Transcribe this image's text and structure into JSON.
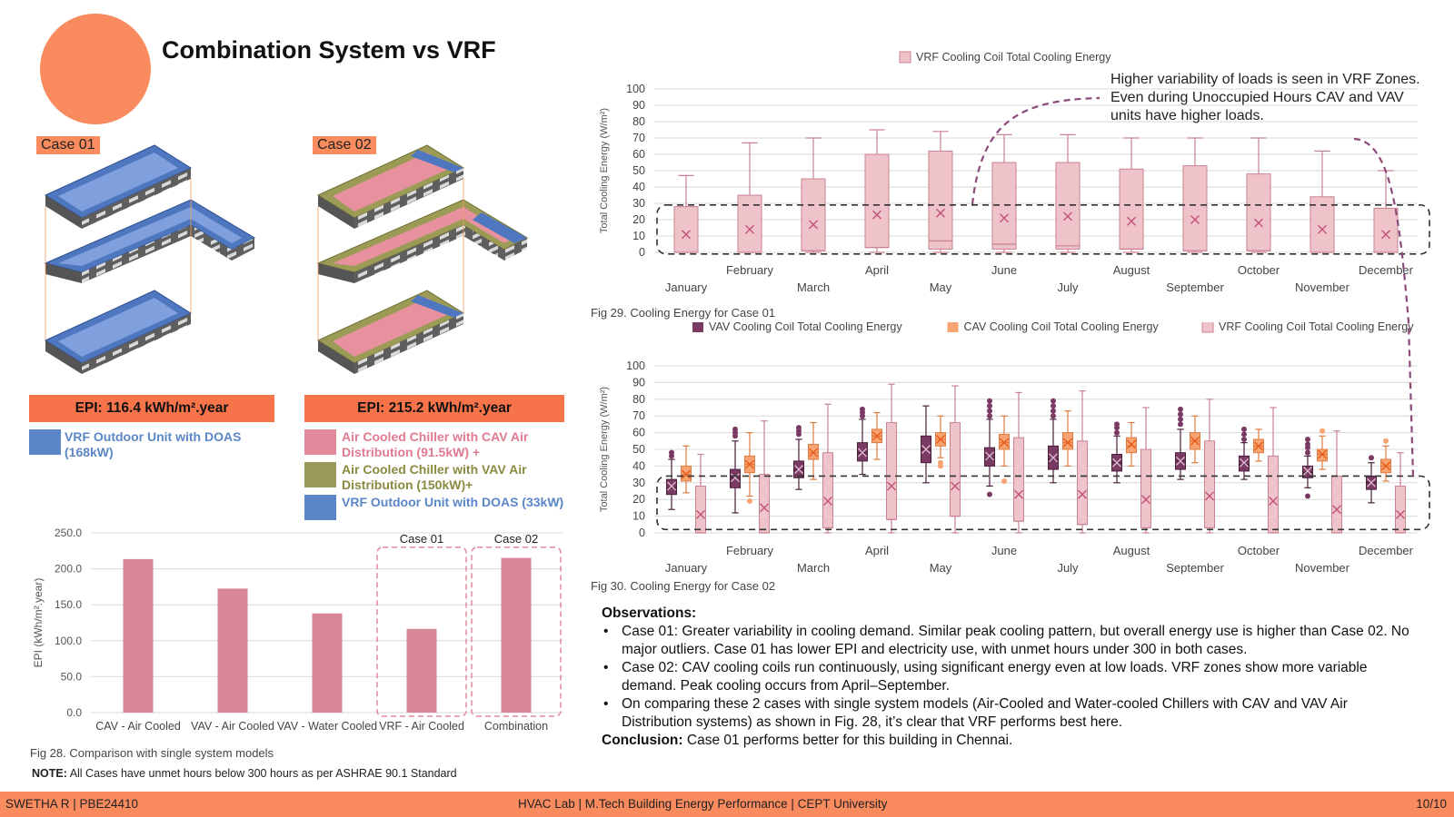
{
  "page": {
    "title": "Combination System vs VRF",
    "case01_label": "Case 01",
    "case02_label": "Case 02",
    "case01_epi": "EPI: 116.4 kWh/m².year",
    "case02_epi": "EPI: 215.2 kWh/m².year",
    "case01_legend": [
      {
        "text": "VRF Outdoor Unit with DOAS (168kW)",
        "color": "#5b86c8",
        "text_color": "#5b86c8"
      }
    ],
    "case02_legend": [
      {
        "text": "Air Cooled Chiller with CAV Air Distribution (91.5kW) +",
        "color": "#e08a9c",
        "text_color": "#e07a8f"
      },
      {
        "text": "Air Cooled Chiller with VAV Air Distribution (150kW)+",
        "color": "#9a9a5a",
        "text_color": "#8a8a40"
      },
      {
        "text": "VRF Outdoor Unit with DOAS (33kW)",
        "color": "#5b86c8",
        "text_color": "#5b86c8"
      }
    ],
    "fig28_caption": "Fig 28. Comparison with single system models",
    "note_label": "NOTE:",
    "note_text": "All Cases have unmet hours below 300 hours as per ASHRAE 90.1 Standard",
    "fig29_caption": "Fig 29. Cooling Energy for Case 01",
    "fig30_caption": "Fig 30. Cooling Energy for Case 02",
    "annotation": "Higher variability of loads is seen in VRF Zones. Even during Unoccupied Hours CAV and VAV units have higher loads.",
    "observations_title": "Observations:",
    "observations": [
      "Case 01: Greater variability in cooling demand. Similar peak cooling pattern, but overall energy use is higher than Case 02. No major outliers. Case 01 has lower EPI and electricity use, with unmet hours under 300 in both cases.",
      "Case 02: CAV cooling coils run continuously, using significant energy even at low loads. VRF zones show more variable demand. Peak cooling occurs from April–September.",
      "On comparing these 2 cases with single system models (Air-Cooled and Water-cooled Chillers with CAV and VAV Air Distribution systems) as shown in Fig. 28, it’s clear that VRF performs best here."
    ],
    "conclusion_label": "Conclusion:",
    "conclusion_text": "Case 01 performs better for this building in Chennai.",
    "footer_left": "SWETHA R | PBE24410",
    "footer_center": "HVAC Lab | M.Tech Building Energy Performance  | CEPT University",
    "footer_right": "10/10",
    "colors": {
      "accent": "#f98b5e",
      "vrf": "#e8b7c1",
      "vav": "#7b3a63",
      "cav": "#f7a472",
      "bar": "#d9879b"
    }
  },
  "chart_data": [
    {
      "id": "fig28",
      "type": "bar",
      "categories": [
        "CAV - Air Cooled",
        "VAV - Air Cooled",
        "VAV - Water Cooled",
        "VRF - Air Cooled",
        "Combination"
      ],
      "values": [
        213.5,
        172.5,
        138,
        116.4,
        215.2
      ],
      "ylabel": "EPI (kWh/m².year)",
      "ylim": [
        0,
        250
      ],
      "yticks": [
        "0.0",
        "50.0",
        "100.0",
        "150.0",
        "200.0",
        "250.0"
      ],
      "highlight_labels": [
        "Case 01",
        "Case 02"
      ],
      "grid": true
    },
    {
      "id": "fig29",
      "type": "box",
      "legend": [
        "VRF Cooling Coil Total Cooling Energy"
      ],
      "ylabel": "Total Cooling Energy  (W/m²)",
      "ylim": [
        0,
        100
      ],
      "yticks": [
        0,
        10,
        20,
        30,
        40,
        50,
        60,
        70,
        80,
        90,
        100
      ],
      "months": [
        "January",
        "February",
        "March",
        "April",
        "May",
        "June",
        "July",
        "August",
        "September",
        "October",
        "November",
        "December"
      ],
      "series": [
        {
          "name": "VRF Cooling Coil Total Cooling Energy",
          "boxes": [
            {
              "min": 0,
              "q1": 0,
              "median": 0,
              "q3": 28,
              "max": 47,
              "mean": 11
            },
            {
              "min": 0,
              "q1": 0,
              "median": 0,
              "q3": 35,
              "max": 67,
              "mean": 14
            },
            {
              "min": 0,
              "q1": 1,
              "median": 1,
              "q3": 45,
              "max": 70,
              "mean": 17
            },
            {
              "min": 0,
              "q1": 3,
              "median": 3,
              "q3": 60,
              "max": 75,
              "mean": 23
            },
            {
              "min": 0,
              "q1": 2,
              "median": 7,
              "q3": 62,
              "max": 74,
              "mean": 24
            },
            {
              "min": 0,
              "q1": 2,
              "median": 5,
              "q3": 55,
              "max": 72,
              "mean": 21
            },
            {
              "min": 0,
              "q1": 2,
              "median": 4,
              "q3": 55,
              "max": 72,
              "mean": 22
            },
            {
              "min": 0,
              "q1": 2,
              "median": 2,
              "q3": 51,
              "max": 70,
              "mean": 19
            },
            {
              "min": 0,
              "q1": 1,
              "median": 1,
              "q3": 53,
              "max": 70,
              "mean": 20
            },
            {
              "min": 0,
              "q1": 1,
              "median": 1,
              "q3": 48,
              "max": 70,
              "mean": 18
            },
            {
              "min": 0,
              "q1": 0,
              "median": 0,
              "q3": 34,
              "max": 62,
              "mean": 14
            },
            {
              "min": 0,
              "q1": 0,
              "median": 0,
              "q3": 27,
              "max": 50,
              "mean": 11
            }
          ]
        }
      ],
      "grid": true
    },
    {
      "id": "fig30",
      "type": "box",
      "legend": [
        "VAV Cooling Coil Total Cooling Energy",
        "CAV Cooling Coil Total Cooling Energy",
        "VRF Cooling Coil Total Cooling Energy"
      ],
      "ylabel": "Total Cooling Energy  (W/m²)",
      "ylim": [
        0,
        100
      ],
      "yticks": [
        0,
        10,
        20,
        30,
        40,
        50,
        60,
        70,
        80,
        90,
        100
      ],
      "months": [
        "January",
        "February",
        "March",
        "April",
        "May",
        "June",
        "July",
        "August",
        "September",
        "October",
        "November",
        "December"
      ],
      "series": [
        {
          "name": "VAV Cooling Coil Total Cooling Energy",
          "boxes": [
            {
              "min": 14,
              "q1": 23,
              "median": 27,
              "q3": 32,
              "max": 44,
              "mean": 28,
              "outliers": [
                46,
                48
              ]
            },
            {
              "min": 12,
              "q1": 27,
              "median": 33,
              "q3": 38,
              "max": 55,
              "mean": 33,
              "outliers": [
                58,
                60,
                62
              ]
            },
            {
              "min": 26,
              "q1": 33,
              "median": 38,
              "q3": 43,
              "max": 56,
              "mean": 38,
              "outliers": [
                59,
                61,
                63
              ]
            },
            {
              "min": 35,
              "q1": 43,
              "median": 48,
              "q3": 54,
              "max": 68,
              "mean": 48,
              "outliers": [
                70,
                72,
                74
              ]
            },
            {
              "min": 30,
              "q1": 42,
              "median": 50,
              "q3": 58,
              "max": 76,
              "mean": 50
            },
            {
              "min": 28,
              "q1": 40,
              "median": 45,
              "q3": 51,
              "max": 68,
              "mean": 46,
              "outliers": [
                23,
                70,
                73,
                76,
                79
              ]
            },
            {
              "min": 30,
              "q1": 38,
              "median": 44,
              "q3": 52,
              "max": 68,
              "mean": 45,
              "outliers": [
                70,
                73,
                76,
                79
              ]
            },
            {
              "min": 30,
              "q1": 37,
              "median": 42,
              "q3": 47,
              "max": 58,
              "mean": 42,
              "outliers": [
                60,
                63,
                65
              ]
            },
            {
              "min": 32,
              "q1": 38,
              "median": 43,
              "q3": 48,
              "max": 62,
              "mean": 43,
              "outliers": [
                65,
                68,
                71,
                74
              ]
            },
            {
              "min": 32,
              "q1": 37,
              "median": 41,
              "q3": 46,
              "max": 54,
              "mean": 42,
              "outliers": [
                56,
                59,
                62
              ]
            },
            {
              "min": 27,
              "q1": 33,
              "median": 36,
              "q3": 40,
              "max": 46,
              "mean": 37,
              "outliers": [
                22,
                48,
                51,
                53,
                56
              ]
            },
            {
              "min": 18,
              "q1": 26,
              "median": 30,
              "q3": 34,
              "max": 42,
              "mean": 30,
              "outliers": [
                45
              ]
            }
          ]
        },
        {
          "name": "CAV Cooling Coil Total Cooling Energy",
          "boxes": [
            {
              "min": 24,
              "q1": 31,
              "median": 35,
              "q3": 40,
              "max": 52,
              "mean": 35
            },
            {
              "min": 22,
              "q1": 36,
              "median": 41,
              "q3": 46,
              "max": 60,
              "mean": 41,
              "outliers": [
                19
              ]
            },
            {
              "min": 32,
              "q1": 44,
              "median": 48,
              "q3": 53,
              "max": 66,
              "mean": 48
            },
            {
              "min": 44,
              "q1": 54,
              "median": 58,
              "q3": 62,
              "max": 72,
              "mean": 58
            },
            {
              "min": 45,
              "q1": 52,
              "median": 56,
              "q3": 60,
              "max": 70,
              "mean": 56,
              "outliers": [
                40,
                42
              ]
            },
            {
              "min": 40,
              "q1": 50,
              "median": 54,
              "q3": 59,
              "max": 70,
              "mean": 54,
              "outliers": [
                31
              ]
            },
            {
              "min": 40,
              "q1": 50,
              "median": 54,
              "q3": 60,
              "max": 73,
              "mean": 54
            },
            {
              "min": 40,
              "q1": 48,
              "median": 52,
              "q3": 57,
              "max": 66,
              "mean": 53
            },
            {
              "min": 42,
              "q1": 50,
              "median": 55,
              "q3": 60,
              "max": 70,
              "mean": 55
            },
            {
              "min": 43,
              "q1": 48,
              "median": 52,
              "q3": 56,
              "max": 62,
              "mean": 52
            },
            {
              "min": 38,
              "q1": 43,
              "median": 47,
              "q3": 50,
              "max": 58,
              "mean": 47,
              "outliers": [
                61
              ]
            },
            {
              "min": 31,
              "q1": 36,
              "median": 40,
              "q3": 44,
              "max": 52,
              "mean": 40,
              "outliers": [
                55
              ]
            }
          ]
        },
        {
          "name": "VRF Cooling Coil Total Cooling Energy",
          "boxes": [
            {
              "min": 0,
              "q1": 0,
              "median": 0,
              "q3": 28,
              "max": 47,
              "mean": 11
            },
            {
              "min": 0,
              "q1": 0,
              "median": 0,
              "q3": 35,
              "max": 67,
              "mean": 15
            },
            {
              "min": 0,
              "q1": 3,
              "median": 3,
              "q3": 48,
              "max": 77,
              "mean": 19
            },
            {
              "min": 0,
              "q1": 8,
              "median": 8,
              "q3": 66,
              "max": 89,
              "mean": 28
            },
            {
              "min": 0,
              "q1": 10,
              "median": 10,
              "q3": 66,
              "max": 88,
              "mean": 28
            },
            {
              "min": 0,
              "q1": 7,
              "median": 7,
              "q3": 57,
              "max": 84,
              "mean": 23
            },
            {
              "min": 0,
              "q1": 5,
              "median": 5,
              "q3": 55,
              "max": 85,
              "mean": 23
            },
            {
              "min": 0,
              "q1": 3,
              "median": 3,
              "q3": 50,
              "max": 75,
              "mean": 20
            },
            {
              "min": 0,
              "q1": 3,
              "median": 3,
              "q3": 55,
              "max": 80,
              "mean": 22
            },
            {
              "min": 0,
              "q1": 0,
              "median": 0,
              "q3": 46,
              "max": 75,
              "mean": 19
            },
            {
              "min": 0,
              "q1": 0,
              "median": 0,
              "q3": 34,
              "max": 61,
              "mean": 14
            },
            {
              "min": 0,
              "q1": 0,
              "median": 0,
              "q3": 28,
              "max": 48,
              "mean": 11
            }
          ]
        }
      ],
      "grid": true
    }
  ]
}
